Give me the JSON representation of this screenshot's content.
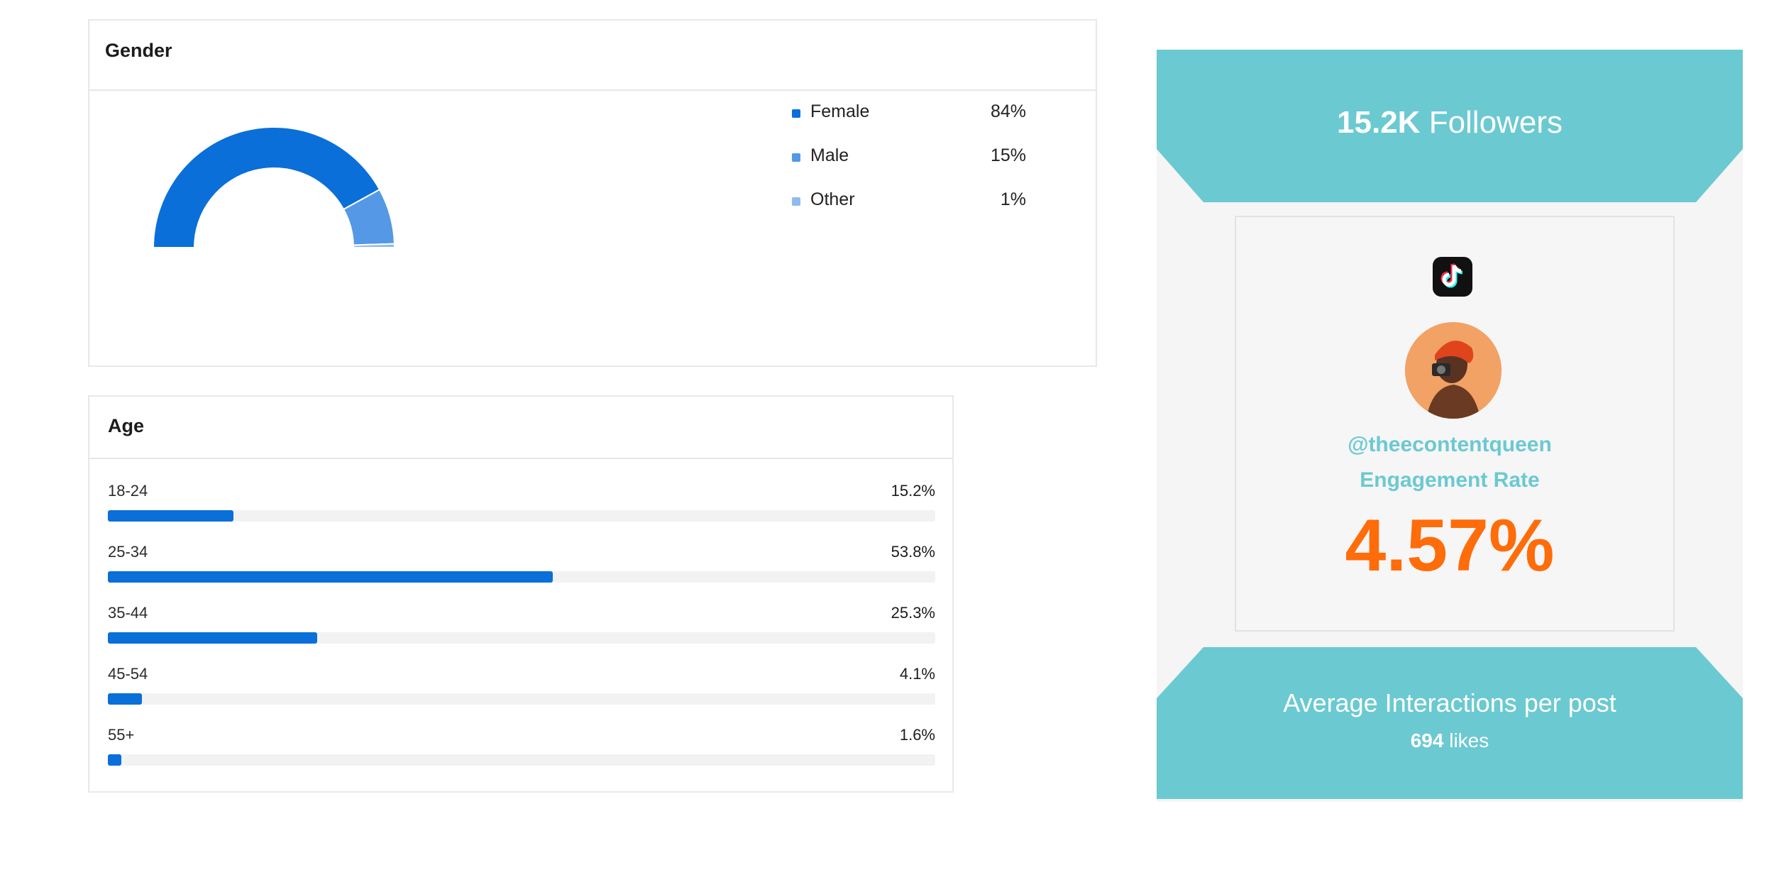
{
  "gender": {
    "title": "Gender",
    "items": [
      {
        "label": "Female",
        "value": "84%",
        "fraction": 0.84,
        "color": "#0a6fd8"
      },
      {
        "label": "Male",
        "value": "15%",
        "fraction": 0.15,
        "color": "#5598e6"
      },
      {
        "label": "Other",
        "value": "1%",
        "fraction": 0.01,
        "color": "#8fbcf0"
      }
    ]
  },
  "age": {
    "title": "Age",
    "rows": [
      {
        "label": "18-24",
        "value": "15.2%",
        "fraction": 0.152
      },
      {
        "label": "25-34",
        "value": "53.8%",
        "fraction": 0.538
      },
      {
        "label": "35-44",
        "value": "25.3%",
        "fraction": 0.253
      },
      {
        "label": "45-54",
        "value": "4.1%",
        "fraction": 0.041
      },
      {
        "label": "55+",
        "value": "1.6%",
        "fraction": 0.016
      }
    ],
    "bar_color": "#0a6fd8"
  },
  "influencer": {
    "followers_count": "15.2K",
    "followers_label": "Followers",
    "platform_icon": "tiktok-icon",
    "handle": "@theecontentqueen",
    "engagement_label": "Engagement Rate",
    "engagement_value": "4.57%",
    "interactions_title": "Average Interactions per post",
    "likes_count": "694",
    "likes_label": "likes",
    "accent_teal": "#6bc9d1",
    "accent_orange": "#ff6c0a"
  }
}
